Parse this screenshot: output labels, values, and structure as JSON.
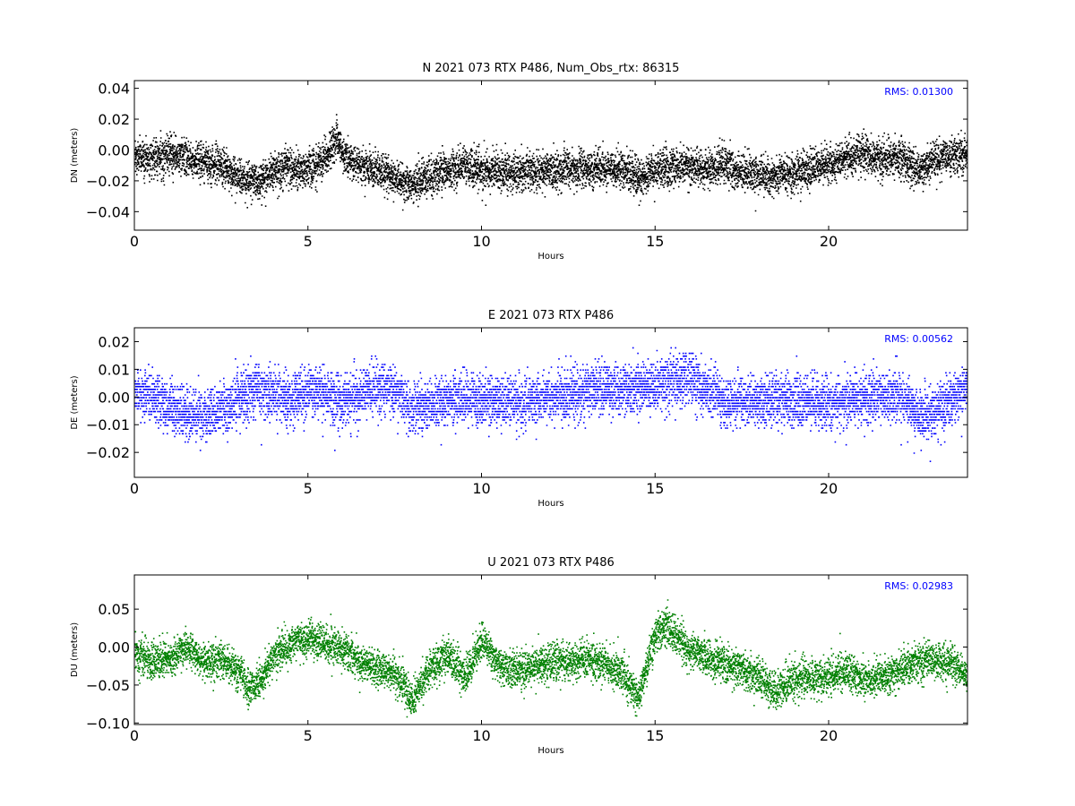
{
  "chart_data": [
    {
      "type": "scatter",
      "title": "N 2021 073 RTX  P486, Num_Obs_rtx: 86315",
      "xlabel": "Hours",
      "ylabel": "DN (meters)",
      "xlim": [
        0,
        24
      ],
      "ylim": [
        -0.052,
        0.045
      ],
      "xticks": [
        0,
        5,
        10,
        15,
        20
      ],
      "yticks": [
        -0.04,
        -0.02,
        0.0,
        0.02,
        0.04
      ],
      "ytick_labels": [
        "−0.04",
        "−0.02",
        "0.00",
        "0.02",
        "0.04"
      ],
      "annotation": "RMS:  0.01300",
      "annotation_color": "#0000ff",
      "color": "#000000",
      "series_trend": {
        "x": [
          0,
          0.5,
          1,
          1.5,
          2,
          2.5,
          3,
          3.5,
          4,
          4.5,
          5,
          5.5,
          5.8,
          6,
          6.5,
          7,
          7.5,
          8,
          8.5,
          9,
          9.5,
          10,
          11,
          12,
          13,
          14,
          14.5,
          15,
          16,
          16.5,
          17,
          17.5,
          18,
          19,
          20,
          20.5,
          21,
          21.5,
          22,
          22.5,
          23,
          23.5,
          24
        ],
        "y": [
          -0.005,
          -0.004,
          -0.003,
          -0.005,
          -0.007,
          -0.01,
          -0.018,
          -0.02,
          -0.012,
          -0.011,
          -0.012,
          -0.005,
          0.008,
          -0.003,
          -0.01,
          -0.012,
          -0.018,
          -0.022,
          -0.017,
          -0.013,
          -0.01,
          -0.013,
          -0.014,
          -0.013,
          -0.012,
          -0.011,
          -0.018,
          -0.012,
          -0.01,
          -0.013,
          -0.009,
          -0.015,
          -0.016,
          -0.015,
          -0.008,
          -0.005,
          -0.002,
          -0.006,
          -0.004,
          -0.012,
          -0.007,
          -0.004,
          -0.003
        ]
      },
      "noise_sd": 0.006
    },
    {
      "type": "scatter",
      "title": "E 2021 073 RTX  P486",
      "xlabel": "Hours",
      "ylabel": "DE (meters)",
      "xlim": [
        0,
        24
      ],
      "ylim": [
        -0.029,
        0.025
      ],
      "xticks": [
        0,
        5,
        10,
        15,
        20
      ],
      "yticks": [
        -0.02,
        -0.01,
        0.0,
        0.01,
        0.02
      ],
      "ytick_labels": [
        "−0.02",
        "−0.01",
        "0.00",
        "0.01",
        "0.02"
      ],
      "annotation": "RMS:  0.00562",
      "annotation_color": "#0000ff",
      "color": "#0000ff",
      "series_trend": {
        "x": [
          0,
          0.5,
          1,
          1.5,
          2,
          2.5,
          3,
          3.5,
          4,
          4.5,
          5,
          5.5,
          6,
          6.5,
          7,
          7.5,
          8,
          8.5,
          9,
          10,
          11,
          12,
          13,
          14,
          15,
          16,
          16.5,
          17,
          18,
          19,
          20,
          21,
          22,
          22.5,
          23,
          23.5,
          24
        ],
        "y": [
          0.002,
          0.0,
          -0.003,
          -0.006,
          -0.007,
          -0.004,
          0.0,
          0.003,
          0.001,
          -0.002,
          0.002,
          0.001,
          -0.002,
          0.002,
          0.004,
          0.002,
          -0.004,
          -0.003,
          0.0,
          -0.001,
          -0.002,
          0.0,
          0.002,
          0.003,
          0.004,
          0.007,
          0.003,
          -0.002,
          -0.001,
          -0.001,
          -0.002,
          0.0,
          0.001,
          -0.005,
          -0.006,
          -0.001,
          0.004
        ]
      },
      "noise_sd": 0.0045,
      "quantum": 0.001
    },
    {
      "type": "scatter",
      "title": "U 2021 073 RTX  P486",
      "xlabel": "Hours",
      "ylabel": "DU (meters)",
      "xlim": [
        0,
        24
      ],
      "ylim": [
        -0.102,
        0.095
      ],
      "xticks": [
        0,
        5,
        10,
        15,
        20
      ],
      "yticks": [
        -0.1,
        -0.05,
        0.0,
        0.05
      ],
      "ytick_labels": [
        "−0.10",
        "−0.05",
        "0.00",
        "0.05"
      ],
      "annotation": "RMS:  0.02983",
      "annotation_color": "#0000ff",
      "color": "#008000",
      "series_trend": {
        "x": [
          0,
          0.5,
          1,
          1.5,
          2,
          2.5,
          3,
          3.3,
          3.6,
          4,
          4.5,
          5,
          5.5,
          6,
          6.5,
          7,
          7.5,
          8,
          8.5,
          9,
          9.5,
          10,
          10.5,
          11,
          12,
          13,
          14,
          14.5,
          15,
          15.3,
          15.6,
          16,
          17,
          18,
          18.4,
          19,
          20,
          20.5,
          21,
          21.5,
          22,
          22.5,
          23,
          23.5,
          24
        ],
        "y": [
          -0.01,
          -0.02,
          -0.015,
          0.0,
          -0.02,
          -0.015,
          -0.03,
          -0.055,
          -0.045,
          -0.01,
          0.005,
          0.012,
          0.005,
          0.0,
          -0.02,
          -0.03,
          -0.035,
          -0.07,
          -0.025,
          -0.01,
          -0.04,
          0.01,
          -0.025,
          -0.03,
          -0.02,
          -0.015,
          -0.03,
          -0.065,
          0.02,
          0.03,
          0.015,
          -0.005,
          -0.02,
          -0.04,
          -0.06,
          -0.04,
          -0.04,
          -0.03,
          -0.045,
          -0.04,
          -0.03,
          -0.02,
          -0.015,
          -0.02,
          -0.04
        ]
      },
      "noise_sd": 0.012
    }
  ]
}
